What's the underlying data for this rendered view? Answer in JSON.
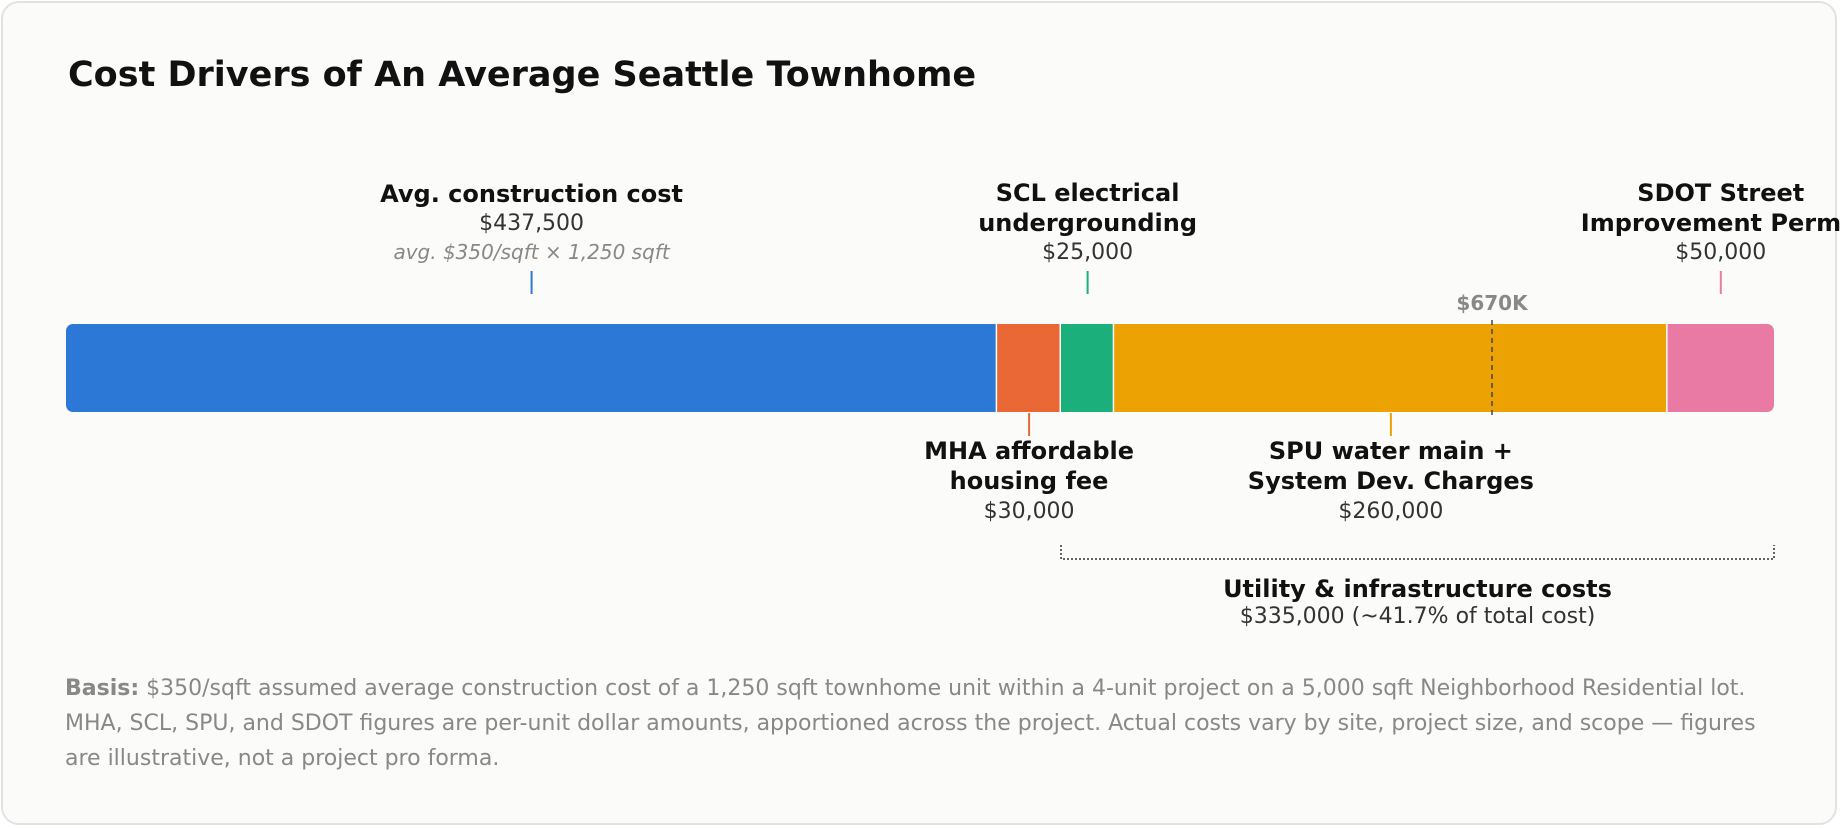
{
  "title": "Cost Drivers of An Average Seattle Townhome",
  "colors": {
    "construction": "#2b78d6",
    "mha": "#e96836",
    "scl": "#1bb07b",
    "spu": "#eca202",
    "sdot": "#e87aa3",
    "reference_line": "#444444",
    "bracket": "#333333"
  },
  "chart_data": {
    "type": "bar",
    "orientation": "horizontal-stacked",
    "categories": [
      "Avg. construction cost",
      "MHA affordable housing fee",
      "SCL electrical undergrounding",
      "SPU water main + System Dev. Charges",
      "SDOT Street Improvement Permit"
    ],
    "values": [
      437500,
      30000,
      25000,
      260000,
      50000
    ],
    "xlim": [
      0,
      802500
    ],
    "segments": [
      {
        "key": "construction",
        "label_lines": [
          "Avg. construction cost"
        ],
        "value_label": "$437,500",
        "note": "avg. $350/sqft × 1,250 sqft",
        "label_side": "above"
      },
      {
        "key": "mha",
        "label_lines": [
          "MHA affordable",
          "housing fee"
        ],
        "value_label": "$30,000",
        "label_side": "below"
      },
      {
        "key": "scl",
        "label_lines": [
          "SCL electrical",
          "undergrounding"
        ],
        "value_label": "$25,000",
        "label_side": "above"
      },
      {
        "key": "spu",
        "label_lines": [
          "SPU water main +",
          "System Dev. Charges"
        ],
        "value_label": "$260,000",
        "label_side": "below"
      },
      {
        "key": "sdot",
        "label_lines": [
          "SDOT Street",
          "Improvement Permit"
        ],
        "value_label": "$50,000",
        "label_side": "above"
      }
    ],
    "reference_line": {
      "value": 670000,
      "label": "$670K"
    },
    "bracket": {
      "from_value": 467500,
      "to_value": 802500,
      "label": "Utility & infrastructure costs",
      "value_label": "$335,000 (~41.7% of total cost)"
    },
    "grid": false,
    "legend": "none"
  },
  "footnote": {
    "label": "Basis:",
    "text": "$350/sqft assumed average construction cost of a 1,250 sqft townhome unit within a 4-unit project on a 5,000 sqft Neighborhood Residential lot. MHA, SCL, SPU, and SDOT figures are per-unit dollar amounts, apportioned across the project. Actual costs vary by site, project size, and scope — figures are illustrative, not a project pro forma."
  }
}
